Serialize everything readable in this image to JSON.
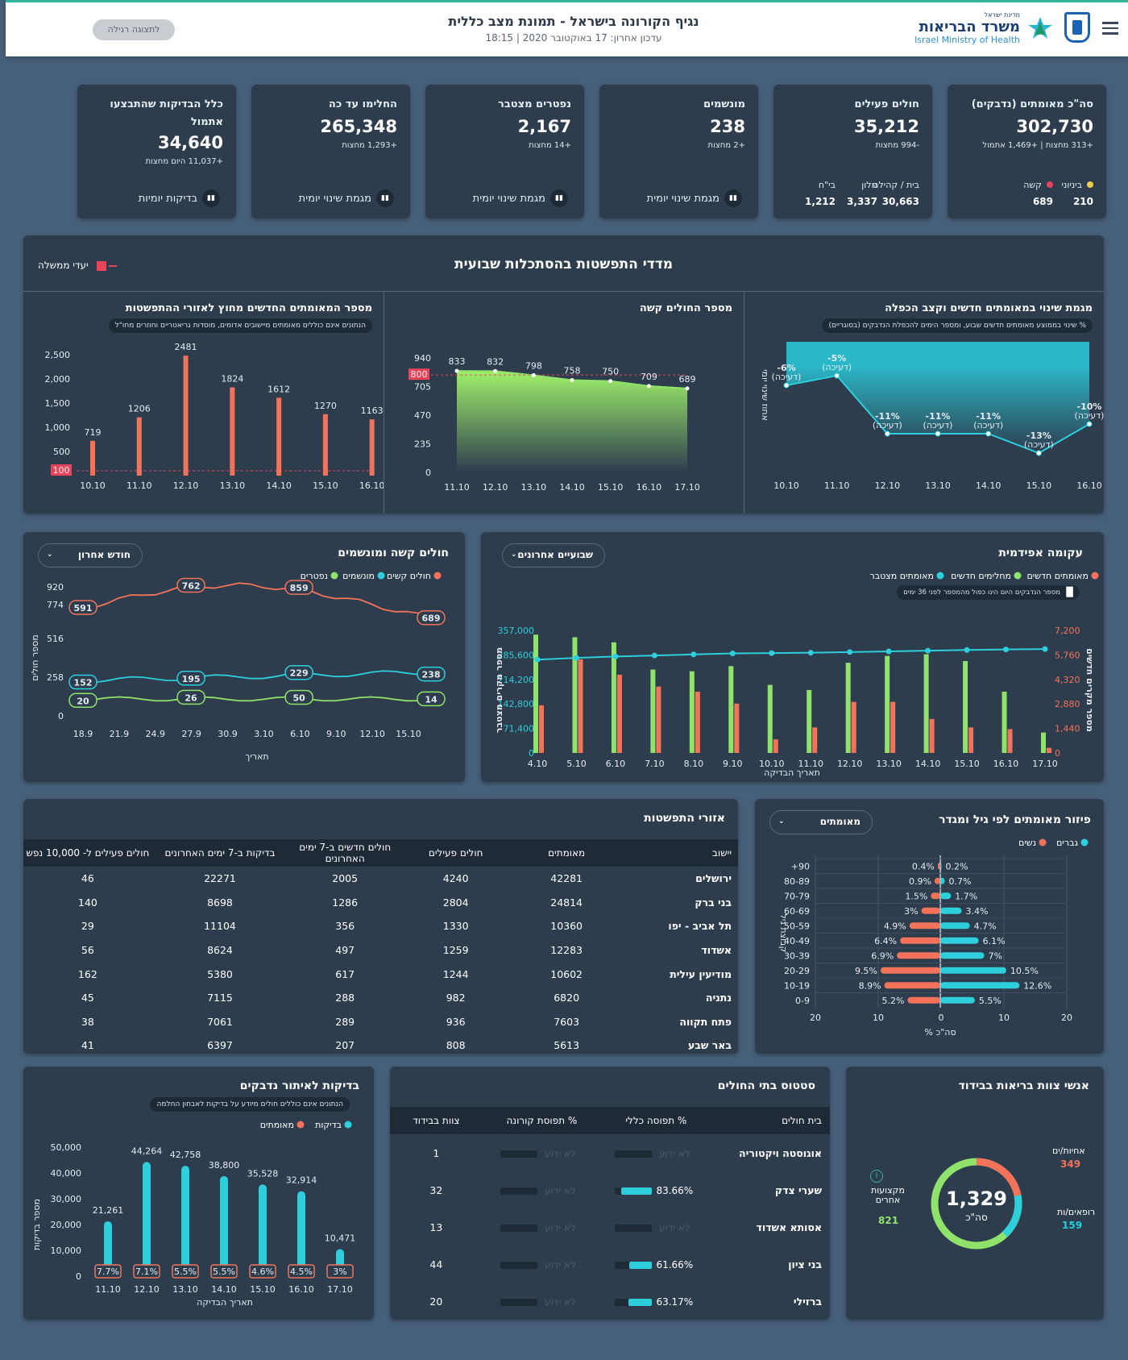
{
  "header": {
    "title": "נגיף הקורונה בישראל - תמונת מצב כללית",
    "updated": "עדכון אחרון: 17 באוקטובר 2020 | 18:15",
    "toggle_btn": "לתצוגה רגילה",
    "logo_top": "מדינת ישראל",
    "logo_he": "משרד הבריאות",
    "logo_en": "Israel Ministry of Health"
  },
  "kpis": [
    {
      "label": "סה\"כ מאומתים (נדבקים)",
      "value": "302,730",
      "sub": "+313 מחצות | +1,469 אתמול",
      "split": [
        {
          "label": "ביניוני",
          "value": "210"
        },
        {
          "label": "קשה",
          "value": "689"
        }
      ]
    },
    {
      "label": "חולים פעילים",
      "value": "35,212",
      "sub": "-994 מחצות",
      "split": [
        {
          "label": "בית / קהילה",
          "value": "30,663"
        },
        {
          "label": "מלון",
          "value": "3,337"
        },
        {
          "label": "בי\"ח",
          "value": "1,212"
        }
      ]
    },
    {
      "label": "מונשמים",
      "value": "238",
      "sub": "+2 מחצות",
      "footer": "מגמת שינוי יומית"
    },
    {
      "label": "נפטרים מצטבר",
      "value": "2,167",
      "sub": "+14 מחצות",
      "footer": "מגמת שינוי יומית"
    },
    {
      "label": "החלימו עד כה",
      "value": "265,348",
      "sub": "+1,293 מחצות",
      "footer": "מגמת שינוי יומית"
    },
    {
      "label": "כלל הבדיקות שהתבצעו אתמול",
      "value": "34,640",
      "sub": "+11,037 היום מחצות",
      "footer": "בדיקות יומיות"
    }
  ],
  "weekly": {
    "title": "מדדי התפשטות בהסתכלות שבועית",
    "legend": "יעדי ממשלה",
    "growth": {
      "title": "מגמת שינוי במאומתים חדשים וקצב הכפלה",
      "info": "% שינוי בממוצע מאומתים חדשים שבוע, ומספר הימים להכפלת הנדבקים (בסוגריים)",
      "ylabel": "אחוז שינוי יומי",
      "dates": [
        "10.10",
        "11.10",
        "12.10",
        "13.10",
        "14.10",
        "15.10",
        "16.10"
      ],
      "pct": [
        "-6%",
        "-5%",
        "-11%",
        "-11%",
        "-11%",
        "-13%",
        "-10%"
      ],
      "sub": "(דעיכה)",
      "values": [
        -6,
        -5,
        -11,
        -11,
        -11,
        -13,
        -10
      ]
    },
    "severe": {
      "title": "מספר החולים קשה",
      "dates": [
        "11.10",
        "12.10",
        "13.10",
        "14.10",
        "15.10",
        "16.10",
        "17.10"
      ],
      "values": [
        833,
        832,
        798,
        758,
        750,
        709,
        689
      ],
      "yticks": [
        "0",
        "235",
        "470",
        "705",
        "940"
      ],
      "target": "800"
    },
    "new_cases": {
      "title": "מספר המאומתים החדשים מחוץ לאזורי ההתפשטות",
      "info": "הנתונים אינם כוללים מאומתים מיישובים אדומים, מוסדות גריאטריים וחוזרים מחו\"ל",
      "dates": [
        "10.10",
        "11.10",
        "12.10",
        "13.10",
        "14.10",
        "15.10",
        "16.10"
      ],
      "values": [
        719,
        1206,
        2481,
        1824,
        1612,
        1270,
        1163
      ],
      "yticks": [
        "500",
        "1,000",
        "1,500",
        "2,000",
        "2,500"
      ],
      "target": "100"
    }
  },
  "epi": {
    "title": "עקומה אפידמית",
    "dropdown": "שבועיים אחרונים",
    "legend": [
      "מאומתים חדשים",
      "מחלימים חדשים",
      "מאומתים מצטבר"
    ],
    "note": "מספר הנדבקים היום הינו כפול מהמספר לפני 36 ימים",
    "xlabel": "תאריך הבדיקה",
    "yleft": "מספר מקרים מצטבר",
    "yright": "מספר מקרים חדשים",
    "chart_data": {
      "type": "bar",
      "categories": [
        "4.10",
        "5.10",
        "6.10",
        "7.10",
        "8.10",
        "9.10",
        "10.10",
        "11.10",
        "12.10",
        "13.10",
        "14.10",
        "15.10",
        "16.10",
        "17.10"
      ],
      "series": [
        {
          "name": "מאומתים חדשים",
          "values": [
            2800,
            5500,
            4600,
            3900,
            3600,
            2900,
            800,
            1500,
            3000,
            3000,
            2000,
            1500,
            1400,
            300
          ]
        },
        {
          "name": "מחלימים חדשים",
          "values": [
            6950,
            6800,
            6500,
            4900,
            4800,
            5100,
            4000,
            3700,
            5300,
            5700,
            5800,
            5400,
            3600,
            1200
          ]
        },
        {
          "name": "מאומתים מצטבר",
          "values": [
            272000,
            277000,
            281000,
            284000,
            287000,
            290000,
            291000,
            292000,
            294000,
            296000,
            298000,
            300000,
            301500,
            302700
          ]
        }
      ],
      "yleft_ticks": [
        "0",
        "71,400",
        "142,800",
        "214,200",
        "285,600",
        "357,000"
      ],
      "yright_ticks": [
        "0",
        "1,440",
        "2,880",
        "4,320",
        "5,760",
        "7,200"
      ]
    }
  },
  "severe_vent": {
    "title": "חולים קשה ומונשמים",
    "dropdown": "חודש אחרון",
    "legend": [
      "חולים קשים",
      "מונשמים",
      "נפטרים"
    ],
    "xlabel": "תאריך",
    "ylabel": "מספר חולים",
    "chart_data": {
      "type": "line",
      "x": [
        "18.9",
        "21.9",
        "24.9",
        "27.9",
        "30.9",
        "3.10",
        "6.10",
        "9.10",
        "12.10",
        "15.10"
      ],
      "yticks": [
        "0",
        "258",
        "516",
        "774",
        "920"
      ],
      "labels": {
        "severe": [
          "591",
          "762",
          "859",
          "689"
        ],
        "vent": [
          "152",
          "195",
          "229",
          "238"
        ],
        "dead": [
          "20",
          "26",
          "50",
          "14"
        ]
      }
    }
  },
  "regions": {
    "title": "אזורי התפשטות",
    "cols": [
      "יישוב",
      "מאומתים",
      "חולים פעילים",
      "חולים חדשים ב-7 ימים האחרונים",
      "בדיקות ב-7 ימים האחרונים",
      "חולים פעילים ל- 10,000 נפש"
    ],
    "rows": [
      [
        "ירושלים",
        "42281",
        "4240",
        "2005",
        "22271",
        "46"
      ],
      [
        "בני ברק",
        "24814",
        "2804",
        "1286",
        "8698",
        "140"
      ],
      [
        "תל אביב - יפו",
        "10360",
        "1330",
        "356",
        "11104",
        "29"
      ],
      [
        "אשדוד",
        "12283",
        "1259",
        "497",
        "8624",
        "56"
      ],
      [
        "מודיעין עילית",
        "10602",
        "1244",
        "617",
        "5380",
        "162"
      ],
      [
        "נתניה",
        "6820",
        "982",
        "288",
        "7115",
        "45"
      ],
      [
        "פתח תקווה",
        "7603",
        "936",
        "289",
        "7061",
        "38"
      ],
      [
        "באר שבע",
        "5613",
        "808",
        "207",
        "6397",
        "41"
      ]
    ]
  },
  "age": {
    "title": "פיזור מאומתים לפי גיל ומגדר",
    "dropdown": "מאומתים",
    "legend": [
      "גברים",
      "נשים"
    ],
    "ylabel": "קבוצת גיל",
    "xlabel": "% סה\"כ",
    "chart_data": {
      "type": "bar",
      "categories": [
        "+90",
        "80-89",
        "70-79",
        "60-69",
        "50-59",
        "40-49",
        "30-39",
        "20-29",
        "10-19",
        "0-9"
      ],
      "women": [
        0.4,
        0.9,
        1.5,
        3,
        4.9,
        6.4,
        6.9,
        9.5,
        8.9,
        5.2
      ],
      "men": [
        0.2,
        0.7,
        1.7,
        3.4,
        4.7,
        6.1,
        7,
        10.5,
        12.6,
        5.5
      ],
      "wlabels": [
        "0.4%",
        "0.9%",
        "1.5%",
        "3%",
        "4.9%",
        "6.4%",
        "6.9%",
        "9.5%",
        "8.9%",
        "5.2%"
      ],
      "mlabels": [
        "0.2%",
        "0.7%",
        "1.7%",
        "3.4%",
        "4.7%",
        "6.1%",
        "7%",
        "10.5%",
        "12.6%",
        "5.5%"
      ],
      "xticks": [
        "20",
        "10",
        "0",
        "10",
        "20"
      ]
    }
  },
  "tests": {
    "title": "בדיקות לאיתור נדבקים",
    "info": "הנתונים אינם כוללים חולים מיודע על בדיקות לאבחון החלמה",
    "legend": [
      "בדיקות",
      "מאומתים"
    ],
    "ylabel": "מספר בדיקות",
    "xlabel": "תאריך הבדיקה",
    "chart_data": {
      "type": "bar",
      "categories": [
        "11.10",
        "12.10",
        "13.10",
        "14.10",
        "15.10",
        "16.10",
        "17.10"
      ],
      "values": [
        21261,
        44264,
        42758,
        38800,
        35528,
        32914,
        10471
      ],
      "labels": [
        "21,261",
        "44,264",
        "42,758",
        "38,800",
        "35,528",
        "32,914",
        "10,471"
      ],
      "pct": [
        "7.7%",
        "7.1%",
        "5.5%",
        "5.5%",
        "4.6%",
        "4.5%",
        "3%"
      ],
      "yticks": [
        "0",
        "10,000",
        "20,000",
        "30,000",
        "40,000",
        "50,000"
      ]
    }
  },
  "hospitals": {
    "title": "סטטוס בתי החולים",
    "cols": [
      "בית חולים",
      "% תפוסה כללי",
      "% תפוסת קורונה",
      "צוות בבידוד"
    ],
    "rows": [
      {
        "name": "אוגוסטה ויקטוריה",
        "general": "לא ידוע",
        "corona": "לא ידוע",
        "staff": "1",
        "fill": 0
      },
      {
        "name": "שערי צדק",
        "general": "83.66%",
        "corona": "לא ידוע",
        "staff": "32",
        "fill": 0.84
      },
      {
        "name": "אסותא אשדוד",
        "general": "לא ידוע",
        "corona": "לא ידוע",
        "staff": "13",
        "fill": 0
      },
      {
        "name": "בני ציון",
        "general": "61.66%",
        "corona": "לא ידוע",
        "staff": "44",
        "fill": 0.62
      },
      {
        "name": "ברזילי",
        "general": "63.17%",
        "corona": "לא ידוע",
        "staff": "20",
        "fill": 0.63
      }
    ]
  },
  "staff": {
    "title": "אנשי צוות בריאות בבידוד",
    "total": "1,329",
    "total_label": "סה\"כ",
    "nurses_label": "אחיות/ים",
    "nurses": "349",
    "doctors_label": "רופאים/ות",
    "doctors": "159",
    "other_label": "מקצועות אחרים",
    "other": "821"
  },
  "colors": {
    "orange": "#f2735a",
    "green": "#8fe36a",
    "cyan": "#2ccfdb",
    "bg": "#47607a",
    "card": "#2e3d4e",
    "target": "#e8445a"
  }
}
